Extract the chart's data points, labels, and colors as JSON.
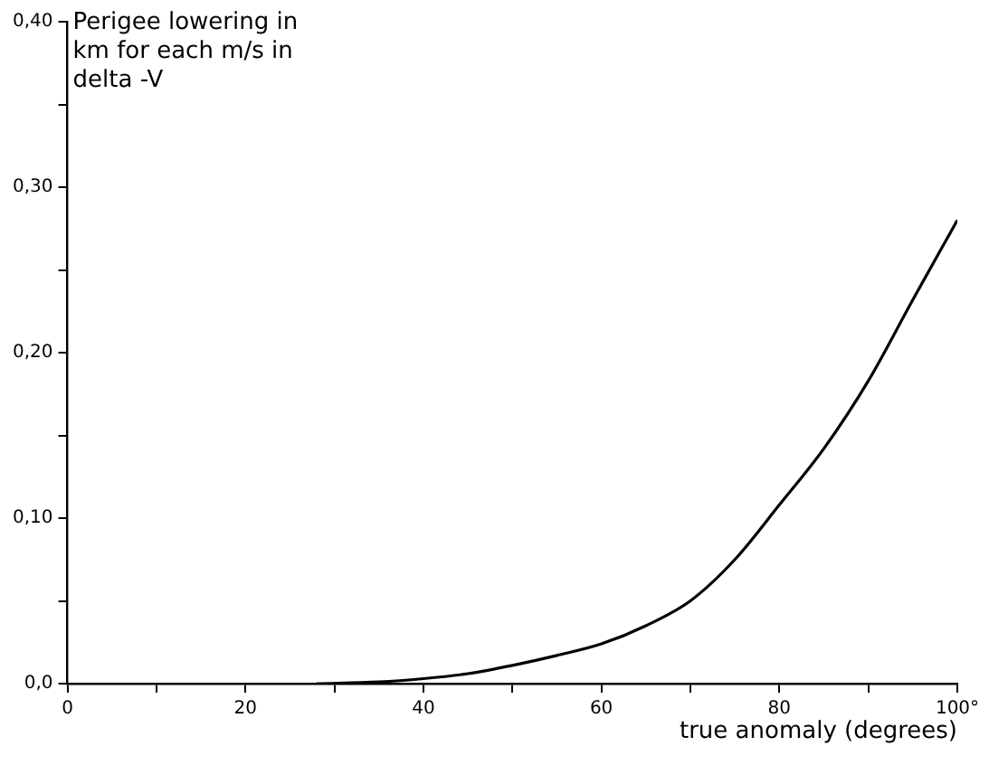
{
  "chart_data": {
    "type": "line",
    "xlabel": "true anomaly (degrees)",
    "ylabel": "Perigee lowering in km for each m/s in delta -V",
    "xlim": [
      0,
      100
    ],
    "ylim": [
      0,
      0.4
    ],
    "xticks": [
      0,
      {
        "value": 10,
        "label": null
      },
      20,
      {
        "value": 30,
        "label": null
      },
      40,
      {
        "value": 50,
        "label": null
      },
      60,
      {
        "value": 70,
        "label": null
      },
      80,
      {
        "value": 90,
        "label": null
      },
      {
        "value": 100,
        "label": "100°"
      }
    ],
    "yticks": [
      {
        "value": 0,
        "label": "0,0"
      },
      {
        "value": 0.05,
        "label": null
      },
      {
        "value": 0.1,
        "label": "0,10"
      },
      {
        "value": 0.15,
        "label": null
      },
      {
        "value": 0.2,
        "label": "0,20"
      },
      {
        "value": 0.25,
        "label": null
      },
      {
        "value": 0.3,
        "label": "0,30"
      },
      {
        "value": 0.35,
        "label": null
      },
      {
        "value": 0.4,
        "label": "0,40"
      }
    ],
    "grid": false,
    "marker": "none",
    "line_style": "solid",
    "series": [
      {
        "color": "#000000",
        "x": [
          28,
          35,
          40,
          45,
          50,
          55,
          60,
          65,
          70,
          75,
          80,
          85,
          90,
          95,
          100
        ],
        "values": [
          0,
          0.001,
          0.003,
          0.006,
          0.011,
          0.017,
          0.024,
          0.035,
          0.05,
          0.075,
          0.108,
          0.142,
          0.183,
          0.232,
          0.28
        ]
      }
    ]
  }
}
